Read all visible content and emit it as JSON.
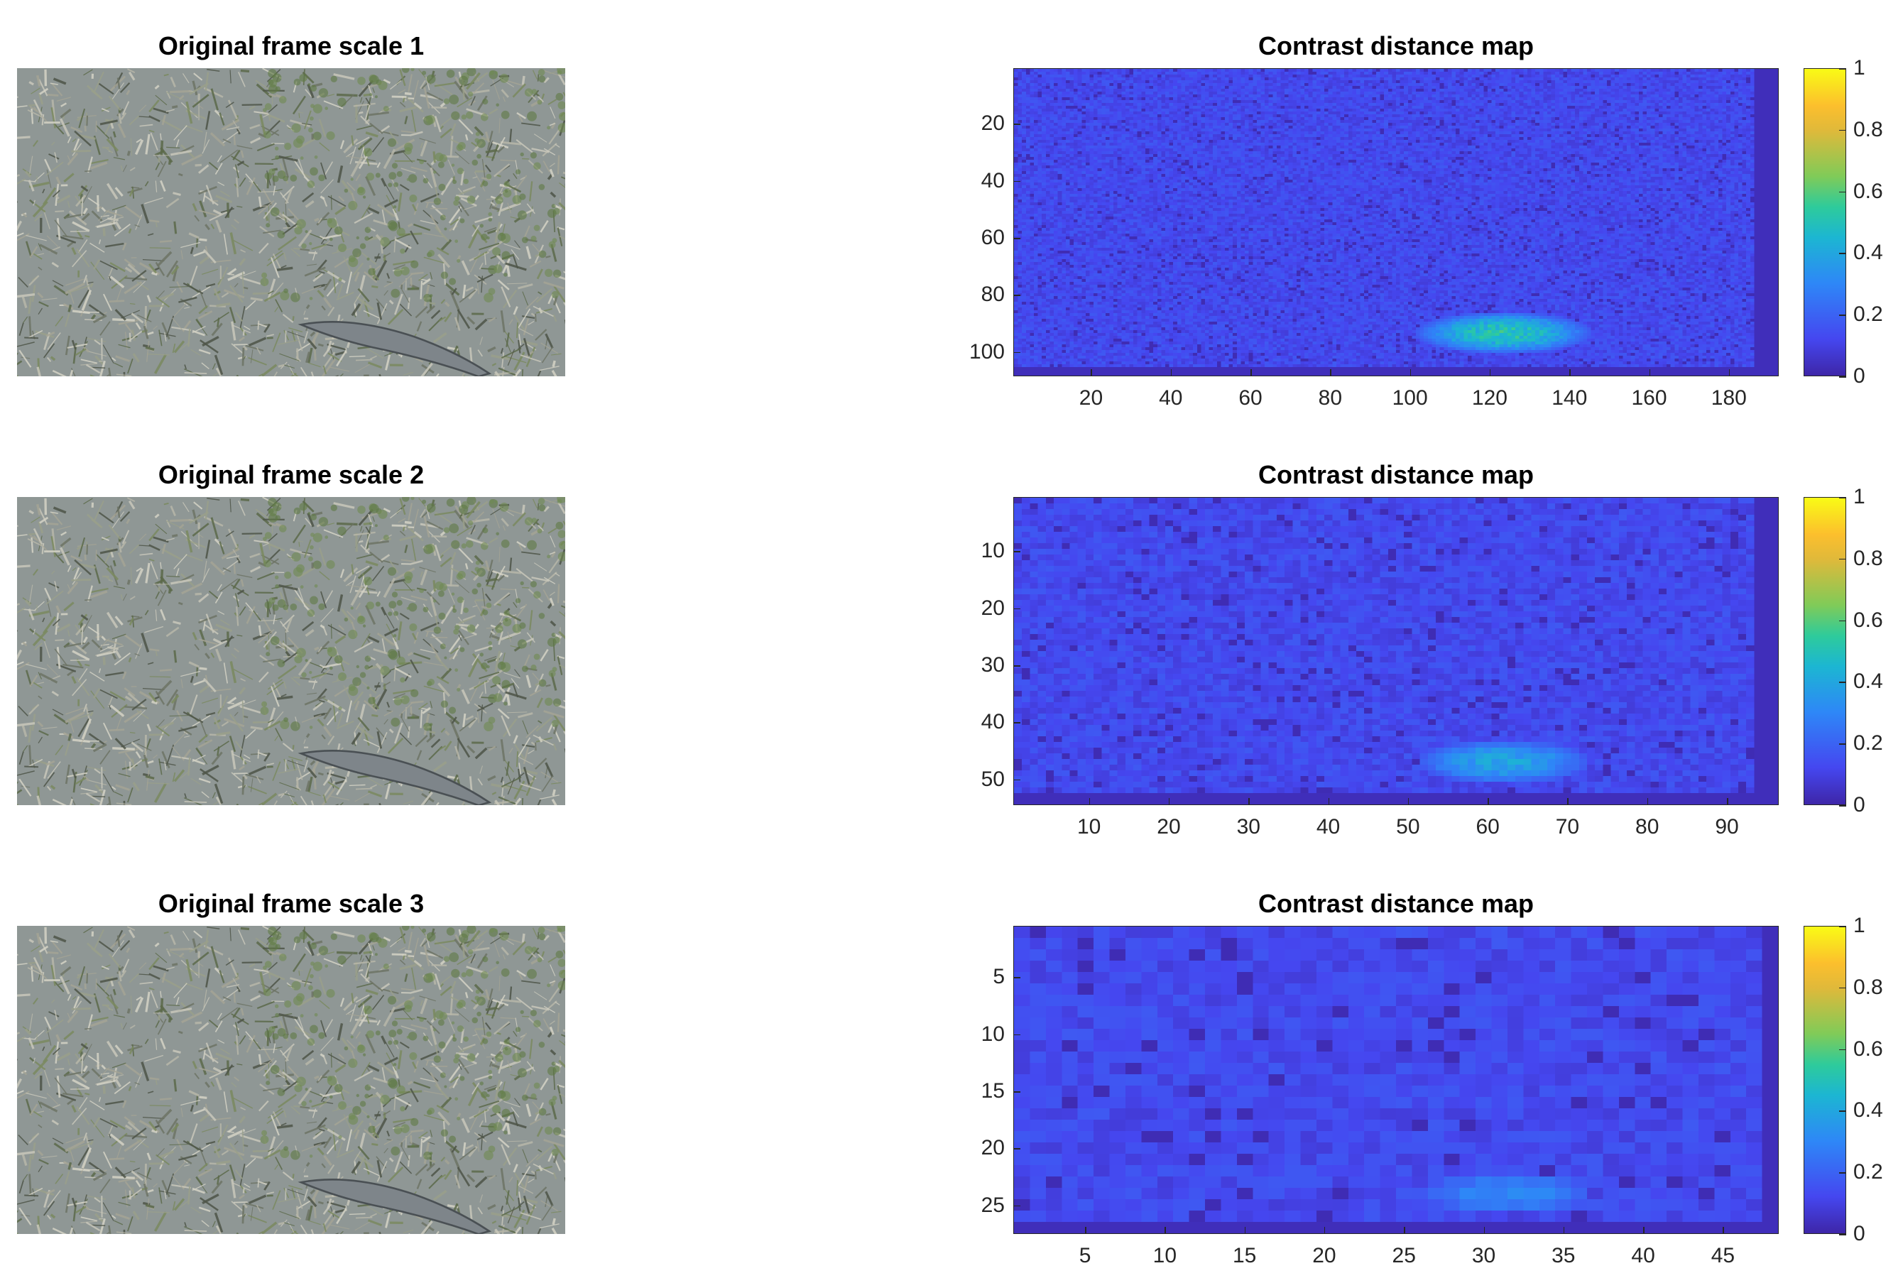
{
  "colors": {
    "accent": "#3e26a8",
    "high": "#f9fb15"
  },
  "colormap": "parula",
  "chart_data": [
    {
      "type": "image",
      "title": "Original frame scale 1"
    },
    {
      "type": "heatmap",
      "title": "Contrast distance map",
      "xlim": [
        1,
        192
      ],
      "ylim": [
        1,
        108
      ],
      "xticks": [
        "20",
        "40",
        "60",
        "80",
        "100",
        "120",
        "140",
        "160",
        "180"
      ],
      "yticks": [
        "20",
        "40",
        "60",
        "80",
        "100"
      ],
      "colorbar": {
        "range": [
          0,
          1
        ],
        "ticks": [
          "0",
          "0.2",
          "0.4",
          "0.6",
          "0.8",
          "1"
        ]
      },
      "hotspot": {
        "x": [
          100,
          145
        ],
        "y": [
          85,
          100
        ],
        "peak": 0.6
      }
    },
    {
      "type": "image",
      "title": "Original frame scale 2"
    },
    {
      "type": "heatmap",
      "title": "Contrast distance map",
      "xlim": [
        1,
        96
      ],
      "ylim": [
        1,
        54
      ],
      "xticks": [
        "10",
        "20",
        "30",
        "40",
        "50",
        "60",
        "70",
        "80",
        "90"
      ],
      "yticks": [
        "10",
        "20",
        "30",
        "40",
        "50"
      ],
      "colorbar": {
        "range": [
          0,
          1
        ],
        "ticks": [
          "0",
          "0.2",
          "0.4",
          "0.6",
          "0.8",
          "1"
        ]
      },
      "hotspot": {
        "x": [
          50,
          72
        ],
        "y": [
          42,
          50
        ],
        "peak": 0.45
      }
    },
    {
      "type": "image",
      "title": "Original frame scale 3"
    },
    {
      "type": "heatmap",
      "title": "Contrast distance map",
      "xlim": [
        1,
        48
      ],
      "ylim": [
        1,
        27
      ],
      "xticks": [
        "5",
        "10",
        "15",
        "20",
        "25",
        "30",
        "35",
        "40",
        "45"
      ],
      "yticks": [
        "5",
        "10",
        "15",
        "20",
        "25"
      ],
      "colorbar": {
        "range": [
          0,
          1
        ],
        "ticks": [
          "0",
          "0.2",
          "0.4",
          "0.6",
          "0.8",
          "1"
        ]
      },
      "hotspot": {
        "x": [
          25,
          36
        ],
        "y": [
          21,
          25
        ],
        "peak": 0.35
      }
    }
  ]
}
